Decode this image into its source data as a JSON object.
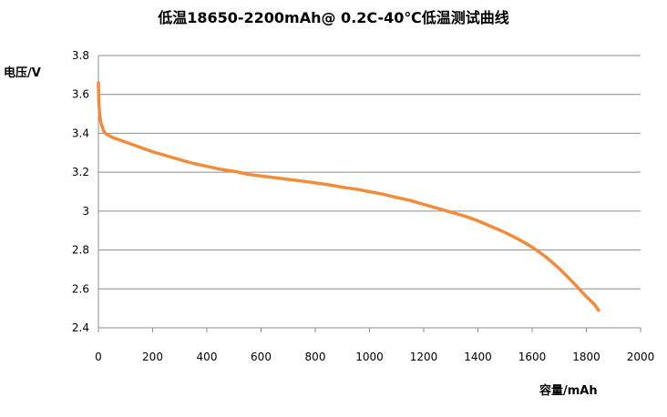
{
  "chart_data": {
    "type": "line",
    "title": "低温18650-2200mAh@ 0.2C-40℃低温测试曲线",
    "xlabel": "容量/mAh",
    "ylabel": "电压/V",
    "xlim": [
      0,
      2000
    ],
    "ylim": [
      2.4,
      3.8
    ],
    "x_ticks": [
      0,
      200,
      400,
      600,
      800,
      1000,
      1200,
      1400,
      1600,
      1800,
      2000
    ],
    "y_ticks": [
      2.4,
      2.6,
      2.8,
      3.0,
      3.2,
      3.4,
      3.6,
      3.8
    ],
    "y_tick_labels": [
      "2.4",
      "2.6",
      "2.8",
      "3",
      "3.2",
      "3.4",
      "3.6",
      "3.8"
    ],
    "grid": "horizontal",
    "legend": "none",
    "colors": {
      "line": "#F08C3C",
      "grid": "#8C8C8C",
      "axis": "#8C8C8C"
    },
    "series": [
      {
        "x": [
          0,
          2,
          5,
          10,
          20,
          30,
          50,
          80,
          100,
          150,
          200,
          250,
          300,
          350,
          400,
          450,
          500,
          550,
          600,
          650,
          700,
          750,
          800,
          850,
          900,
          950,
          1000,
          1050,
          1100,
          1150,
          1200,
          1250,
          1300,
          1350,
          1400,
          1450,
          1500,
          1550,
          1600,
          1650,
          1700,
          1750,
          1800,
          1830,
          1845
        ],
        "y": [
          3.66,
          3.55,
          3.49,
          3.45,
          3.41,
          3.395,
          3.38,
          3.365,
          3.355,
          3.33,
          3.305,
          3.285,
          3.265,
          3.245,
          3.23,
          3.215,
          3.205,
          3.19,
          3.18,
          3.172,
          3.163,
          3.155,
          3.145,
          3.135,
          3.123,
          3.113,
          3.1,
          3.087,
          3.07,
          3.055,
          3.035,
          3.015,
          2.995,
          2.975,
          2.95,
          2.92,
          2.89,
          2.855,
          2.815,
          2.765,
          2.705,
          2.635,
          2.56,
          2.52,
          2.49
        ]
      }
    ]
  }
}
